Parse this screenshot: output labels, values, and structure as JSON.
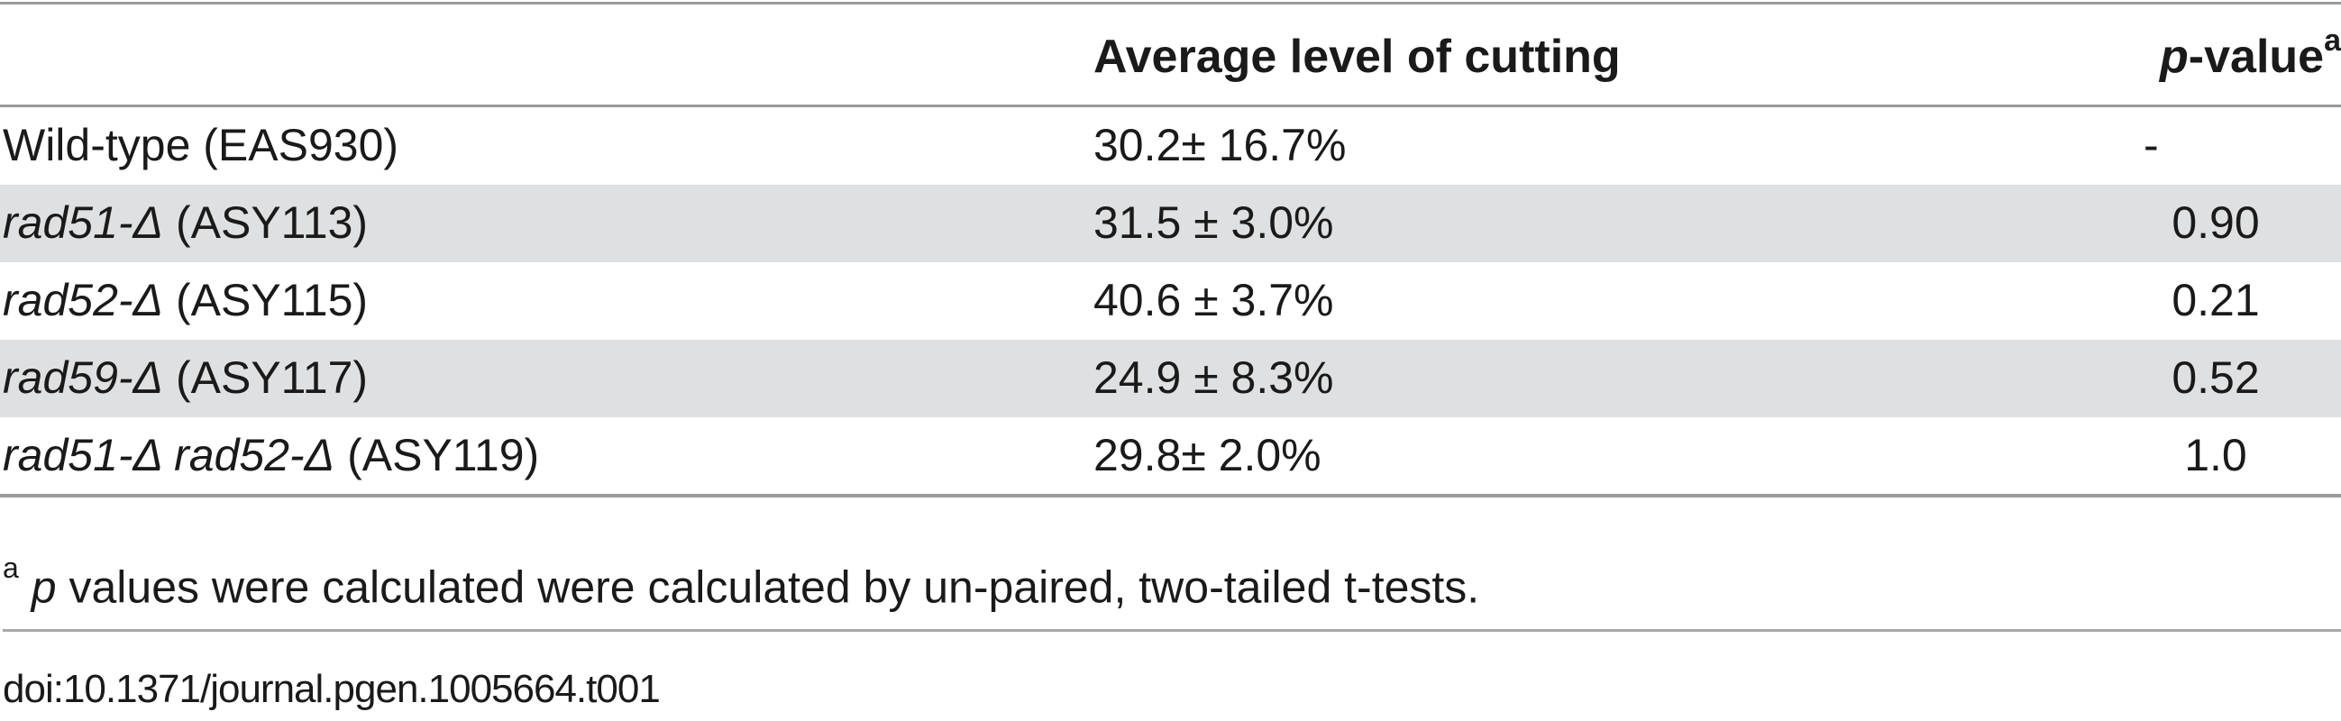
{
  "table": {
    "headers": {
      "strain": "",
      "avg": "Average level of cutting",
      "p_italic": "p",
      "p_rest": "-value",
      "p_sup": "a"
    },
    "rows": [
      {
        "gene1": "",
        "gene2": "",
        "strain": "Wild-type (EAS930)",
        "avg": "30.2± 16.7%",
        "p": "-"
      },
      {
        "gene1": "rad51-Δ",
        "gene2": "",
        "strain": " (ASY113)",
        "avg": "31.5 ± 3.0%",
        "p": "0.90"
      },
      {
        "gene1": "rad52-Δ",
        "gene2": "",
        "strain": " (ASY115)",
        "avg": "40.6 ± 3.7%",
        "p": "0.21"
      },
      {
        "gene1": "rad59-Δ",
        "gene2": "",
        "strain": " (ASY117)",
        "avg": "24.9 ± 8.3%",
        "p": "0.52"
      },
      {
        "gene1": "rad51-Δ",
        "gene2": " rad52-Δ",
        "strain": " (ASY119)",
        "avg": "29.8± 2.0%",
        "p": "1.0"
      }
    ]
  },
  "footnote": {
    "marker": "a",
    "p_italic": "p",
    "text": " values were calculated were calculated by un-paired, two-tailed t-tests."
  },
  "doi": "doi:10.1371/journal.pgen.1005664.t001"
}
